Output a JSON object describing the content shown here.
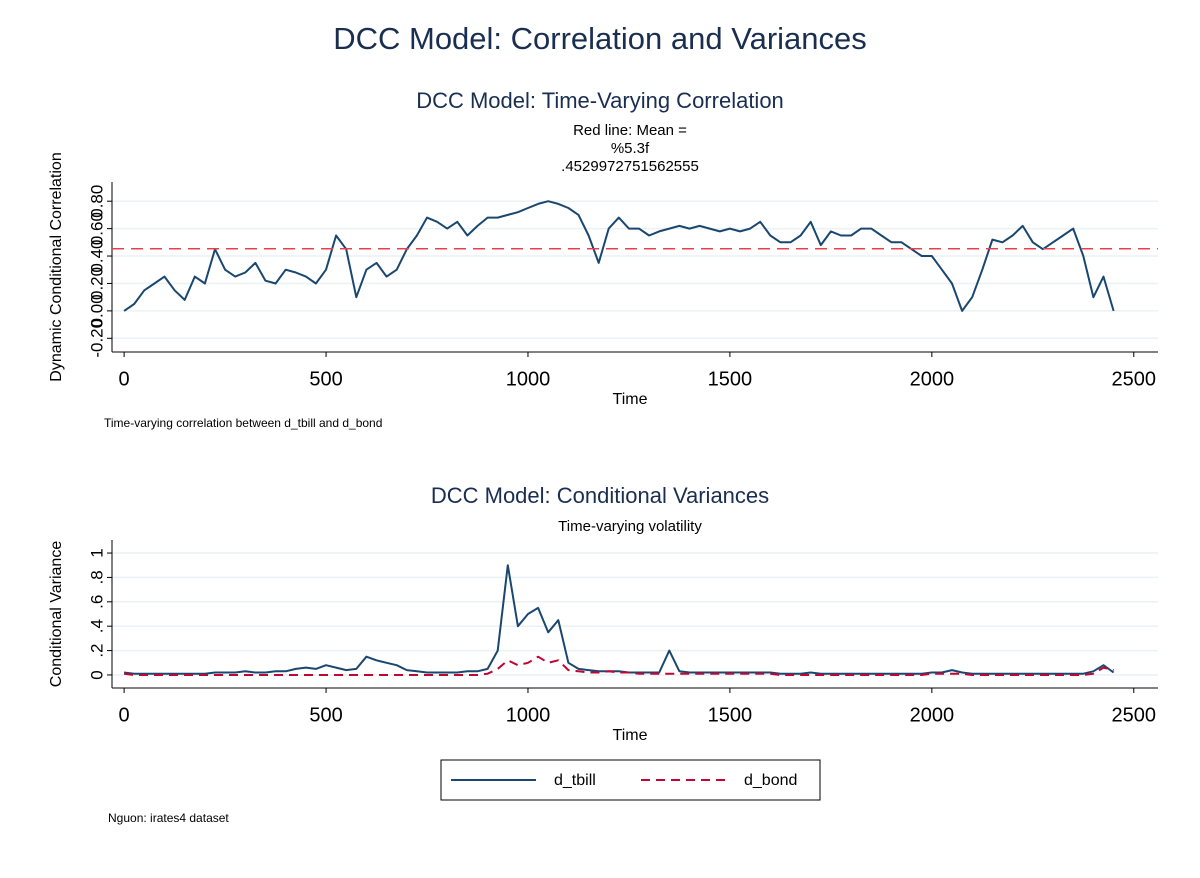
{
  "title": "DCC Model: Correlation and Variances",
  "note": "Nguon: irates4 dataset",
  "chart_data": [
    {
      "type": "line",
      "title": "DCC Model: Time-Varying Correlation",
      "subtitle": [
        "Red line: Mean =",
        "%5.3f",
        ".4529972751562555"
      ],
      "xlabel": "Time",
      "ylabel": "Dynamic Conditional Correlation",
      "note": "Time-varying correlation between d_tbill and d_bond",
      "x": [
        0,
        25,
        50,
        75,
        100,
        125,
        150,
        175,
        200,
        225,
        250,
        275,
        300,
        325,
        350,
        375,
        400,
        425,
        450,
        475,
        500,
        525,
        550,
        575,
        600,
        625,
        650,
        675,
        700,
        725,
        750,
        775,
        800,
        825,
        850,
        875,
        900,
        925,
        950,
        975,
        1000,
        1025,
        1050,
        1075,
        1100,
        1125,
        1150,
        1175,
        1200,
        1225,
        1250,
        1275,
        1300,
        1325,
        1350,
        1375,
        1400,
        1425,
        1450,
        1475,
        1500,
        1525,
        1550,
        1575,
        1600,
        1625,
        1650,
        1675,
        1700,
        1725,
        1750,
        1775,
        1800,
        1825,
        1850,
        1875,
        1900,
        1925,
        1950,
        1975,
        2000,
        2025,
        2050,
        2075,
        2100,
        2125,
        2150,
        2175,
        2200,
        2225,
        2250,
        2275,
        2300,
        2325,
        2350,
        2375,
        2400,
        2425,
        2450
      ],
      "values": [
        0.0,
        0.05,
        0.15,
        0.2,
        0.25,
        0.15,
        0.08,
        0.25,
        0.2,
        0.45,
        0.3,
        0.25,
        0.28,
        0.35,
        0.22,
        0.2,
        0.3,
        0.28,
        0.25,
        0.2,
        0.3,
        0.55,
        0.45,
        0.1,
        0.3,
        0.35,
        0.25,
        0.3,
        0.45,
        0.55,
        0.68,
        0.65,
        0.6,
        0.65,
        0.55,
        0.62,
        0.68,
        0.68,
        0.7,
        0.72,
        0.75,
        0.78,
        0.8,
        0.78,
        0.75,
        0.7,
        0.55,
        0.35,
        0.6,
        0.68,
        0.6,
        0.6,
        0.55,
        0.58,
        0.6,
        0.62,
        0.6,
        0.62,
        0.6,
        0.58,
        0.6,
        0.58,
        0.6,
        0.65,
        0.55,
        0.5,
        0.5,
        0.55,
        0.65,
        0.48,
        0.58,
        0.55,
        0.55,
        0.6,
        0.6,
        0.55,
        0.5,
        0.5,
        0.45,
        0.4,
        0.4,
        0.3,
        0.2,
        0.0,
        0.1,
        0.3,
        0.52,
        0.5,
        0.55,
        0.62,
        0.5,
        0.45,
        0.5,
        0.55,
        0.6,
        0.4,
        0.1,
        0.25,
        0.0
      ],
      "color": "#1a476f",
      "hline": {
        "value": 0.4529972751562555,
        "color": "#e8404a"
      },
      "xlim": [
        -30,
        2560
      ],
      "xticks": [
        0,
        500,
        1000,
        1500,
        2000,
        2500
      ],
      "ylim": [
        -0.3,
        0.94
      ],
      "yticks": [
        {
          "value": -0.2,
          "label": "-0.20"
        },
        {
          "value": 0,
          "label": "0.00"
        },
        {
          "value": 0.2,
          "label": "0.20"
        },
        {
          "value": 0.4,
          "label": "0.40"
        },
        {
          "value": 0.6,
          "label": "0.60"
        },
        {
          "value": 0.8,
          "label": "0.80"
        }
      ],
      "grid": true
    },
    {
      "type": "line",
      "title": "DCC Model: Conditional Variances",
      "subtitle": [
        "Time-varying volatility"
      ],
      "xlabel": "Time",
      "ylabel": "Conditional Variance",
      "x": [
        0,
        25,
        50,
        75,
        100,
        125,
        150,
        175,
        200,
        225,
        250,
        275,
        300,
        325,
        350,
        375,
        400,
        425,
        450,
        475,
        500,
        525,
        550,
        575,
        600,
        625,
        650,
        675,
        700,
        725,
        750,
        775,
        800,
        825,
        850,
        875,
        900,
        925,
        950,
        975,
        1000,
        1025,
        1050,
        1075,
        1100,
        1125,
        1150,
        1175,
        1200,
        1225,
        1250,
        1275,
        1300,
        1325,
        1350,
        1375,
        1400,
        1425,
        1450,
        1475,
        1500,
        1525,
        1550,
        1575,
        1600,
        1625,
        1650,
        1675,
        1700,
        1725,
        1750,
        1775,
        1800,
        1825,
        1850,
        1875,
        1900,
        1925,
        1950,
        1975,
        2000,
        2025,
        2050,
        2075,
        2100,
        2125,
        2150,
        2175,
        2200,
        2225,
        2250,
        2275,
        2300,
        2325,
        2350,
        2375,
        2400,
        2425,
        2450
      ],
      "series": [
        {
          "name": "d_tbill",
          "color": "#1a476f",
          "dash": false,
          "values": [
            0.02,
            0.01,
            0.01,
            0.01,
            0.01,
            0.01,
            0.01,
            0.01,
            0.01,
            0.02,
            0.02,
            0.02,
            0.03,
            0.02,
            0.02,
            0.03,
            0.03,
            0.05,
            0.06,
            0.05,
            0.08,
            0.06,
            0.04,
            0.05,
            0.15,
            0.12,
            0.1,
            0.08,
            0.04,
            0.03,
            0.02,
            0.02,
            0.02,
            0.02,
            0.03,
            0.03,
            0.05,
            0.2,
            0.9,
            0.4,
            0.5,
            0.55,
            0.35,
            0.45,
            0.1,
            0.05,
            0.04,
            0.03,
            0.03,
            0.03,
            0.02,
            0.02,
            0.02,
            0.02,
            0.2,
            0.03,
            0.02,
            0.02,
            0.02,
            0.02,
            0.02,
            0.02,
            0.02,
            0.02,
            0.02,
            0.01,
            0.01,
            0.01,
            0.02,
            0.01,
            0.01,
            0.01,
            0.01,
            0.01,
            0.01,
            0.01,
            0.01,
            0.01,
            0.01,
            0.01,
            0.02,
            0.02,
            0.04,
            0.02,
            0.01,
            0.01,
            0.01,
            0.01,
            0.01,
            0.01,
            0.01,
            0.01,
            0.01,
            0.01,
            0.01,
            0.01,
            0.03,
            0.08,
            0.02
          ]
        },
        {
          "name": "d_bond",
          "color": "#c10534",
          "dash": true,
          "values": [
            0.01,
            0.0,
            0.0,
            0.0,
            0.0,
            0.0,
            0.0,
            0.0,
            0.0,
            0.0,
            0.0,
            0.0,
            0.0,
            0.0,
            0.0,
            0.0,
            0.0,
            0.0,
            0.0,
            0.0,
            0.0,
            0.0,
            0.0,
            0.0,
            0.0,
            0.0,
            0.0,
            0.0,
            0.0,
            0.0,
            0.0,
            0.0,
            0.0,
            0.0,
            0.0,
            0.0,
            0.01,
            0.05,
            0.12,
            0.08,
            0.1,
            0.15,
            0.1,
            0.12,
            0.04,
            0.03,
            0.02,
            0.02,
            0.03,
            0.02,
            0.02,
            0.01,
            0.01,
            0.01,
            0.01,
            0.01,
            0.01,
            0.01,
            0.01,
            0.01,
            0.01,
            0.01,
            0.01,
            0.01,
            0.01,
            0.0,
            0.0,
            0.0,
            0.0,
            0.0,
            0.0,
            0.0,
            0.0,
            0.0,
            0.0,
            0.0,
            0.0,
            0.0,
            0.0,
            0.0,
            0.01,
            0.01,
            0.01,
            0.01,
            0.0,
            0.0,
            0.0,
            0.0,
            0.0,
            0.0,
            0.0,
            0.0,
            0.0,
            0.0,
            0.0,
            0.0,
            0.01,
            0.06,
            0.04
          ]
        }
      ],
      "xlim": [
        -30,
        2560
      ],
      "xticks": [
        0,
        500,
        1000,
        1500,
        2000,
        2500
      ],
      "ylim": [
        -0.107,
        1.107
      ],
      "yticks": [
        0,
        {
          "value": 0.2,
          "label": ".2"
        },
        {
          "value": 0.4,
          "label": ".4"
        },
        {
          "value": 0.6,
          "label": ".6"
        },
        {
          "value": 0.8,
          "label": ".8"
        },
        1
      ],
      "grid": true,
      "legend": "bottom"
    }
  ]
}
